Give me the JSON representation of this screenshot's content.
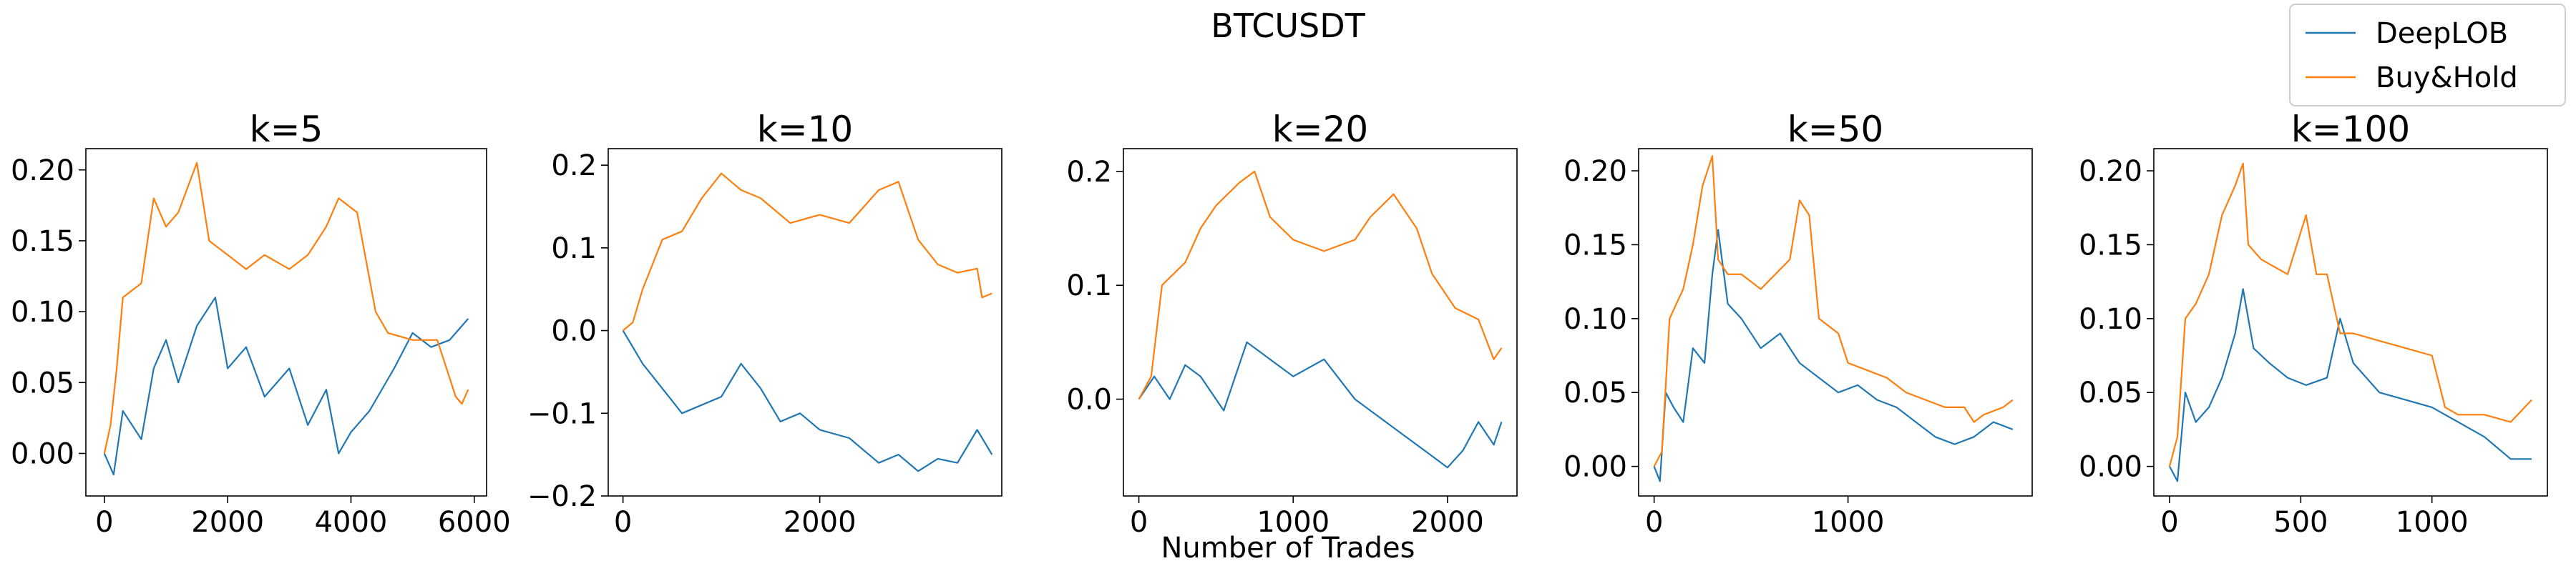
{
  "figure": {
    "title": "BTCUSDT",
    "xlabel": "Number of Trades",
    "legend": {
      "placement": "top-right",
      "entries": [
        {
          "label": "DeepLOB",
          "color": "#1f77b4"
        },
        {
          "label": "Buy&Hold",
          "color": "#ff7f0e"
        }
      ]
    }
  },
  "chart_data": [
    {
      "type": "line",
      "title": "k=5",
      "xlim": [
        -300,
        6200
      ],
      "ylim": [
        -0.03,
        0.215
      ],
      "xticks": [
        0,
        2000,
        4000,
        6000
      ],
      "xtick_labels": [
        "0",
        "2000",
        "4000",
        "6000"
      ],
      "yticks": [
        0.0,
        0.05,
        0.1,
        0.15,
        0.2
      ],
      "ytick_labels": [
        "0.00",
        "0.05",
        "0.10",
        "0.15",
        "0.20"
      ],
      "series": [
        {
          "name": "DeepLOB",
          "color": "#1f77b4",
          "x": [
            0,
            150,
            300,
            600,
            800,
            1000,
            1200,
            1500,
            1800,
            2000,
            2300,
            2600,
            3000,
            3300,
            3600,
            3800,
            4000,
            4300,
            4700,
            5000,
            5300,
            5600,
            5900
          ],
          "y": [
            0.0,
            -0.015,
            0.03,
            0.01,
            0.06,
            0.08,
            0.05,
            0.09,
            0.11,
            0.06,
            0.075,
            0.04,
            0.06,
            0.02,
            0.045,
            0.0,
            0.015,
            0.03,
            0.06,
            0.085,
            0.075,
            0.08,
            0.095
          ]
        },
        {
          "name": "Buy&Hold",
          "color": "#ff7f0e",
          "x": [
            0,
            100,
            200,
            300,
            600,
            800,
            1000,
            1200,
            1500,
            1700,
            2000,
            2300,
            2600,
            3000,
            3300,
            3600,
            3800,
            4100,
            4400,
            4600,
            5000,
            5400,
            5700,
            5800,
            5900
          ],
          "y": [
            0.0,
            0.02,
            0.06,
            0.11,
            0.12,
            0.18,
            0.16,
            0.17,
            0.205,
            0.15,
            0.14,
            0.13,
            0.14,
            0.13,
            0.14,
            0.16,
            0.18,
            0.17,
            0.1,
            0.085,
            0.08,
            0.08,
            0.04,
            0.035,
            0.045
          ]
        }
      ]
    },
    {
      "type": "line",
      "title": "k=10",
      "xlim": [
        -150,
        3850
      ],
      "ylim": [
        -0.2,
        0.22
      ],
      "xticks": [
        0,
        2000
      ],
      "xtick_labels": [
        "0",
        "2000"
      ],
      "yticks": [
        -0.2,
        -0.1,
        0.0,
        0.1,
        0.2
      ],
      "ytick_labels": [
        "−0.2",
        "−0.1",
        "0.0",
        "0.1",
        "0.2"
      ],
      "series": [
        {
          "name": "DeepLOB",
          "color": "#1f77b4",
          "x": [
            0,
            100,
            200,
            400,
            600,
            800,
            1000,
            1200,
            1400,
            1600,
            1800,
            2000,
            2300,
            2600,
            2800,
            3000,
            3200,
            3400,
            3600,
            3750
          ],
          "y": [
            0.0,
            -0.02,
            -0.04,
            -0.07,
            -0.1,
            -0.09,
            -0.08,
            -0.04,
            -0.07,
            -0.11,
            -0.1,
            -0.12,
            -0.13,
            -0.16,
            -0.15,
            -0.17,
            -0.155,
            -0.16,
            -0.12,
            -0.15
          ]
        },
        {
          "name": "Buy&Hold",
          "color": "#ff7f0e",
          "x": [
            0,
            100,
            200,
            400,
            600,
            800,
            1000,
            1200,
            1400,
            1700,
            2000,
            2300,
            2600,
            2800,
            3000,
            3200,
            3400,
            3600,
            3650,
            3750
          ],
          "y": [
            0.0,
            0.01,
            0.05,
            0.11,
            0.12,
            0.16,
            0.19,
            0.17,
            0.16,
            0.13,
            0.14,
            0.13,
            0.17,
            0.18,
            0.11,
            0.08,
            0.07,
            0.075,
            0.04,
            0.045
          ]
        }
      ]
    },
    {
      "type": "line",
      "title": "k=20",
      "xlim": [
        -100,
        2450
      ],
      "ylim": [
        -0.085,
        0.22
      ],
      "xticks": [
        0,
        1000,
        2000
      ],
      "xtick_labels": [
        "0",
        "1000",
        "2000"
      ],
      "yticks": [
        0.0,
        0.1,
        0.2
      ],
      "ytick_labels": [
        "0.0",
        "0.1",
        "0.2"
      ],
      "series": [
        {
          "name": "DeepLOB",
          "color": "#1f77b4",
          "x": [
            0,
            100,
            200,
            300,
            400,
            550,
            700,
            800,
            900,
            1000,
            1200,
            1400,
            1500,
            1700,
            1900,
            2000,
            2100,
            2200,
            2300,
            2350
          ],
          "y": [
            0.0,
            0.02,
            0.0,
            0.03,
            0.02,
            -0.01,
            0.05,
            0.04,
            0.03,
            0.02,
            0.035,
            0.0,
            -0.01,
            -0.03,
            -0.05,
            -0.06,
            -0.045,
            -0.02,
            -0.04,
            -0.02
          ]
        },
        {
          "name": "Buy&Hold",
          "color": "#ff7f0e",
          "x": [
            0,
            80,
            150,
            300,
            400,
            500,
            650,
            750,
            850,
            1000,
            1200,
            1400,
            1500,
            1650,
            1800,
            1900,
            2050,
            2200,
            2300,
            2350
          ],
          "y": [
            0.0,
            0.02,
            0.1,
            0.12,
            0.15,
            0.17,
            0.19,
            0.2,
            0.16,
            0.14,
            0.13,
            0.14,
            0.16,
            0.18,
            0.15,
            0.11,
            0.08,
            0.07,
            0.035,
            0.045
          ]
        }
      ]
    },
    {
      "type": "line",
      "title": "k=50",
      "xlim": [
        -80,
        1950
      ],
      "ylim": [
        -0.02,
        0.215
      ],
      "xticks": [
        0,
        1000
      ],
      "xtick_labels": [
        "0",
        "1000"
      ],
      "yticks": [
        0.0,
        0.05,
        0.1,
        0.15,
        0.2
      ],
      "ytick_labels": [
        "0.00",
        "0.05",
        "0.10",
        "0.15",
        "0.20"
      ],
      "series": [
        {
          "name": "DeepLOB",
          "color": "#1f77b4",
          "x": [
            0,
            30,
            60,
            100,
            150,
            200,
            260,
            300,
            330,
            380,
            450,
            550,
            650,
            750,
            850,
            950,
            1050,
            1150,
            1250,
            1350,
            1450,
            1550,
            1650,
            1750,
            1850
          ],
          "y": [
            0.0,
            -0.01,
            0.05,
            0.04,
            0.03,
            0.08,
            0.07,
            0.13,
            0.16,
            0.11,
            0.1,
            0.08,
            0.09,
            0.07,
            0.06,
            0.05,
            0.055,
            0.045,
            0.04,
            0.03,
            0.02,
            0.015,
            0.02,
            0.03,
            0.025
          ]
        },
        {
          "name": "Buy&Hold",
          "color": "#ff7f0e",
          "x": [
            0,
            40,
            80,
            150,
            200,
            250,
            300,
            330,
            380,
            450,
            550,
            700,
            750,
            800,
            850,
            950,
            1000,
            1100,
            1200,
            1300,
            1400,
            1500,
            1600,
            1650,
            1700,
            1800,
            1850
          ],
          "y": [
            0.0,
            0.01,
            0.1,
            0.12,
            0.15,
            0.19,
            0.21,
            0.14,
            0.13,
            0.13,
            0.12,
            0.14,
            0.18,
            0.17,
            0.1,
            0.09,
            0.07,
            0.065,
            0.06,
            0.05,
            0.045,
            0.04,
            0.04,
            0.03,
            0.035,
            0.04,
            0.045
          ]
        }
      ]
    },
    {
      "type": "line",
      "title": "k=100",
      "xlim": [
        -60,
        1440
      ],
      "ylim": [
        -0.02,
        0.215
      ],
      "xticks": [
        0,
        500,
        1000
      ],
      "xtick_labels": [
        "0",
        "500",
        "1000"
      ],
      "yticks": [
        0.0,
        0.05,
        0.1,
        0.15,
        0.2
      ],
      "ytick_labels": [
        "0.00",
        "0.05",
        "0.10",
        "0.15",
        "0.20"
      ],
      "series": [
        {
          "name": "DeepLOB",
          "color": "#1f77b4",
          "x": [
            0,
            30,
            60,
            100,
            150,
            200,
            250,
            280,
            320,
            380,
            450,
            520,
            600,
            650,
            700,
            800,
            900,
            1000,
            1100,
            1200,
            1300,
            1380
          ],
          "y": [
            0.0,
            -0.01,
            0.05,
            0.03,
            0.04,
            0.06,
            0.09,
            0.12,
            0.08,
            0.07,
            0.06,
            0.055,
            0.06,
            0.1,
            0.07,
            0.05,
            0.045,
            0.04,
            0.03,
            0.02,
            0.005,
            0.005
          ]
        },
        {
          "name": "Buy&Hold",
          "color": "#ff7f0e",
          "x": [
            0,
            30,
            60,
            100,
            150,
            200,
            250,
            280,
            300,
            350,
            450,
            520,
            560,
            600,
            650,
            700,
            800,
            900,
            1000,
            1050,
            1100,
            1200,
            1300,
            1380
          ],
          "y": [
            0.0,
            0.02,
            0.1,
            0.11,
            0.13,
            0.17,
            0.19,
            0.205,
            0.15,
            0.14,
            0.13,
            0.17,
            0.13,
            0.13,
            0.09,
            0.09,
            0.085,
            0.08,
            0.075,
            0.04,
            0.035,
            0.035,
            0.03,
            0.045
          ]
        }
      ]
    }
  ]
}
